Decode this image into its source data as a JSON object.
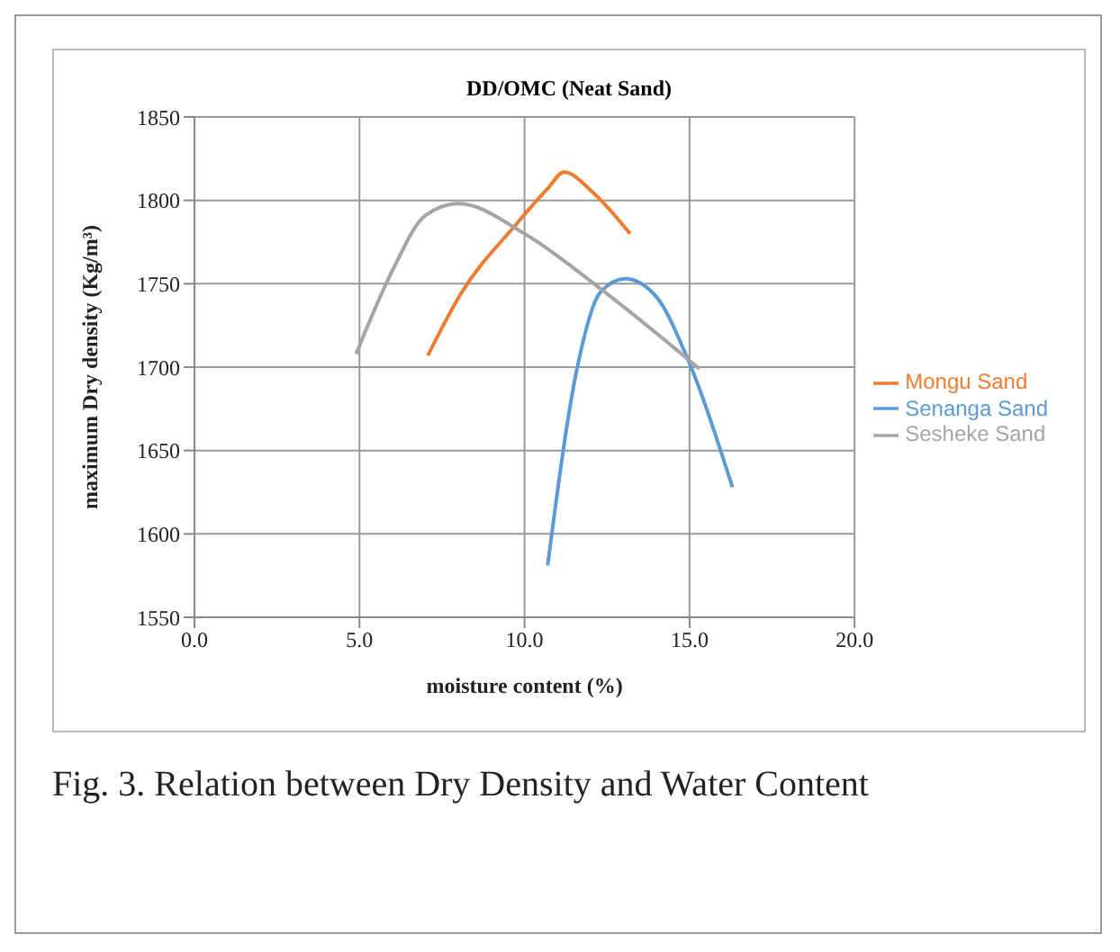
{
  "chart_data": {
    "type": "line",
    "title": "DD/OMC (Neat Sand)",
    "xlabel": "moisture content (%)",
    "ylabel": "maximum Dry density (Kg/m³)",
    "annotations": [
      "Fig. 3. Relation between Dry Density and Water Content"
    ],
    "series": [
      {
        "name": "Senanga Sand",
        "color": "#5b9bd5",
        "x": [
          10.7,
          11.6,
          12.3,
          13.05,
          14.0,
          14.9,
          16.3
        ],
        "values": [
          1581,
          1700,
          1745,
          1753,
          1742,
          1707,
          1628
        ]
      },
      {
        "name": "Mongu Sand",
        "color": "#ed7d31",
        "x": [
          7.07,
          8.07,
          9.72,
          10.7,
          11.2,
          12.06,
          13.2
        ],
        "values": [
          1707,
          1744,
          1785,
          1807,
          1817,
          1805,
          1780
        ]
      },
      {
        "name": "Sesheke Sand",
        "color": "#a5a5a5",
        "x": [
          4.9,
          6.0,
          7.0,
          8.0,
          10.0,
          12.3,
          15.3
        ],
        "values": [
          1708,
          1758,
          1791,
          1798,
          1780,
          1747,
          1699
        ]
      }
    ],
    "xlim": [
      0,
      20
    ],
    "xticks": [
      {
        "value": 0,
        "label": "0.0"
      },
      {
        "value": 5,
        "label": "5.0"
      },
      {
        "value": 10,
        "label": "10.0"
      },
      {
        "value": 15,
        "label": "15.0"
      },
      {
        "value": 20,
        "label": "20.0"
      }
    ],
    "ylim": [
      1550,
      1850
    ],
    "yticks": [
      1550,
      1600,
      1650,
      1700,
      1750,
      1800,
      1850
    ],
    "grid": true,
    "legend": "right",
    "marker": "none",
    "line_style": "solid"
  }
}
